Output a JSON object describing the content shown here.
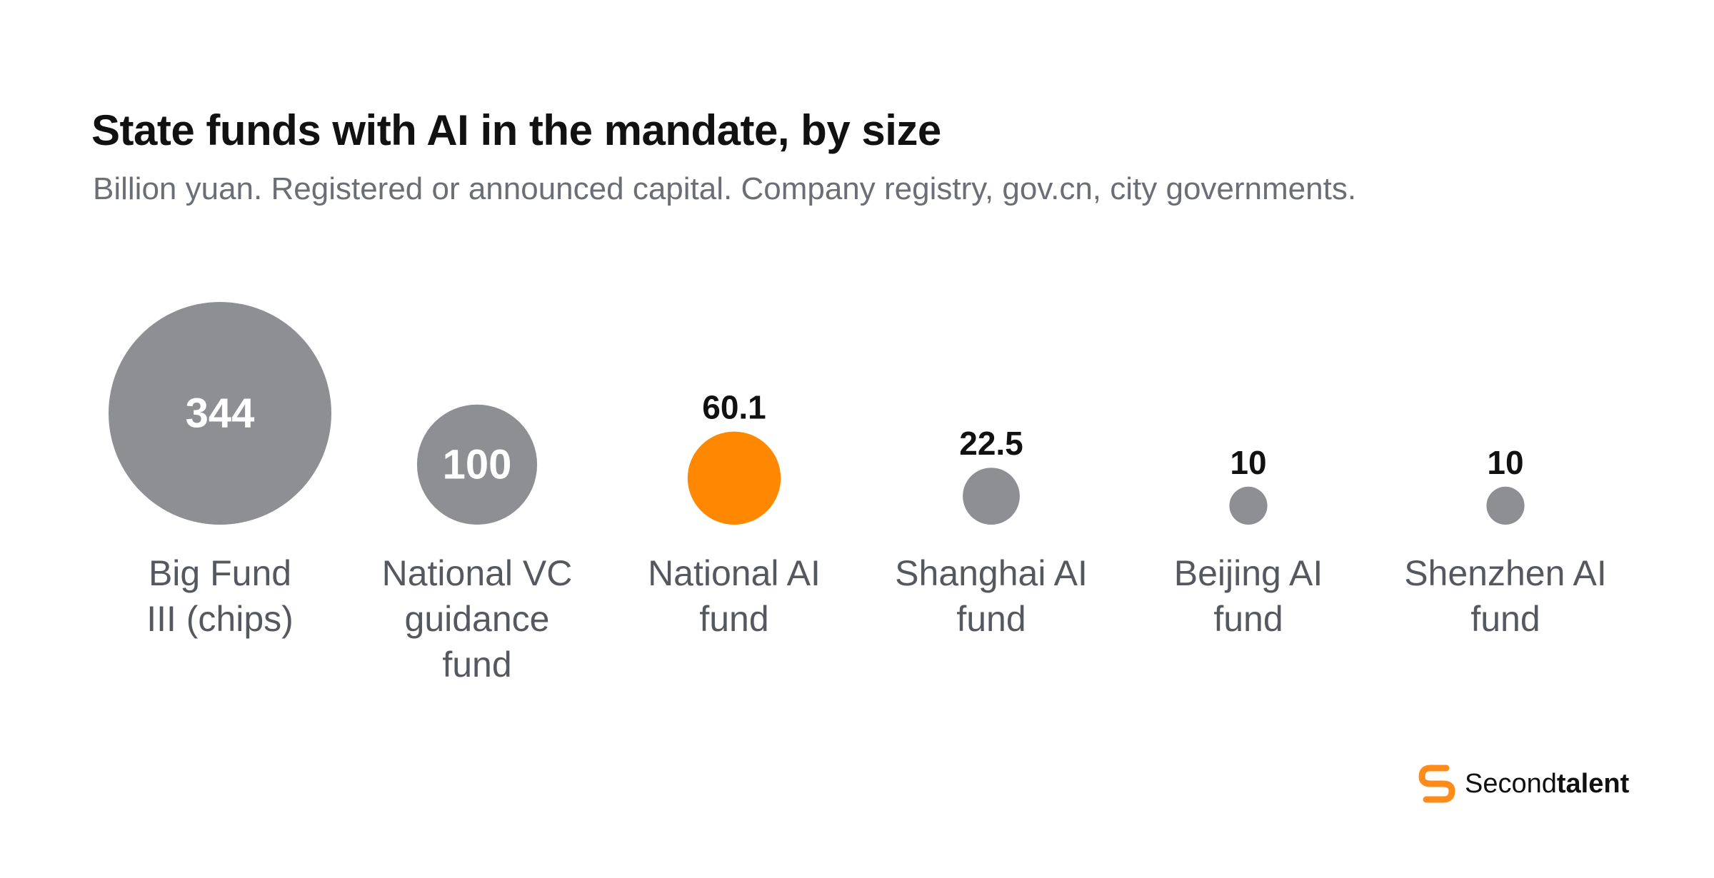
{
  "chart_data": {
    "type": "bubble",
    "title": "State funds with AI in the mandate, by size",
    "subtitle": "Billion yuan. Registered or announced capital. Company registry, gov.cn, city governments.",
    "unit": "Billion yuan",
    "categories": [
      "Big Fund III (chips)",
      "National VC guidance fund",
      "National AI fund",
      "Shanghai AI fund",
      "Beijing AI fund",
      "Shenzhen AI fund"
    ],
    "category_lines": [
      [
        "Big Fund",
        "III (chips)"
      ],
      [
        "National VC",
        "guidance",
        "fund"
      ],
      [
        "National AI",
        "fund"
      ],
      [
        "Shanghai AI",
        "fund"
      ],
      [
        "Beijing AI",
        "fund"
      ],
      [
        "Shenzhen AI",
        "fund"
      ]
    ],
    "values": [
      344,
      100,
      60.1,
      22.5,
      10,
      10
    ],
    "value_labels": [
      "344",
      "100",
      "60.1",
      "22.5",
      "10",
      "10"
    ],
    "highlight": "National AI fund",
    "colors": {
      "default": "#8e8f93",
      "highlight": "#ff8800",
      "label_inside": "#ffffff",
      "label_outside": "#111111",
      "category_label": "#55585f"
    }
  },
  "brand": {
    "name_light": "Second",
    "name_bold": "talent",
    "icon": "secondtalent-s-logo-icon",
    "color": "#ff8c1a"
  }
}
